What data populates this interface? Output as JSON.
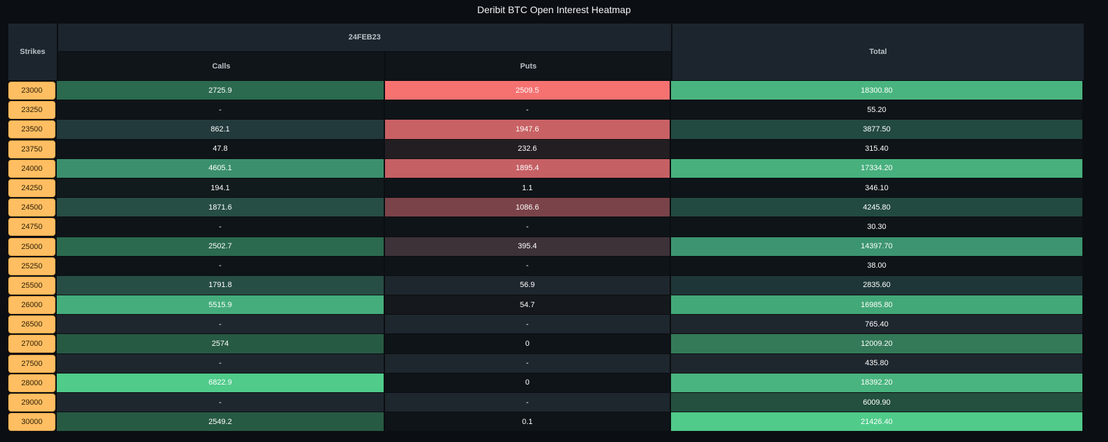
{
  "title": "Deribit BTC Open Interest Heatmap",
  "header": {
    "strikes": "Strikes",
    "expiry": "24FEB23",
    "calls": "Calls",
    "puts": "Puts",
    "total": "Total"
  },
  "colors": {
    "background": "#0b0e12",
    "strike_badge": "#ffbe62",
    "header": "#1c252d"
  },
  "rows": [
    {
      "strike": "23000",
      "calls": "2725.9",
      "puts": "2509.5",
      "total": "18300.80",
      "calls_bg": "#2b6a4f",
      "puts_bg": "#f57271",
      "total_bg": "#49b47f"
    },
    {
      "strike": "23250",
      "calls": "-",
      "puts": "-",
      "total": "55.20",
      "calls_bg": "#0f1418",
      "puts_bg": "#0f1418",
      "total_bg": "#0f1418"
    },
    {
      "strike": "23500",
      "calls": "862.1",
      "puts": "1947.6",
      "total": "3877.50",
      "calls_bg": "#223a3b",
      "puts_bg": "#c86164",
      "total_bg": "#234a40"
    },
    {
      "strike": "23750",
      "calls": "47.8",
      "puts": "232.6",
      "total": "315.40",
      "calls_bg": "#0f1418",
      "puts_bg": "#231e22",
      "total_bg": "#0f1418"
    },
    {
      "strike": "24000",
      "calls": "4605.1",
      "puts": "1895.4",
      "total": "17334.20",
      "calls_bg": "#3b8f6c",
      "puts_bg": "#c56065",
      "total_bg": "#47b07d"
    },
    {
      "strike": "24250",
      "calls": "194.1",
      "puts": "1.1",
      "total": "346.10",
      "calls_bg": "#111a1c",
      "puts_bg": "#0f1418",
      "total_bg": "#0f1418"
    },
    {
      "strike": "24500",
      "calls": "1871.6",
      "puts": "1086.6",
      "total": "4245.80",
      "calls_bg": "#274e45",
      "puts_bg": "#7a4349",
      "total_bg": "#234a40"
    },
    {
      "strike": "24750",
      "calls": "-",
      "puts": "-",
      "total": "30.30",
      "calls_bg": "#0f1418",
      "puts_bg": "#0f1418",
      "total_bg": "#0f1418"
    },
    {
      "strike": "25000",
      "calls": "2502.7",
      "puts": "395.4",
      "total": "14397.70",
      "calls_bg": "#2b6a4f",
      "puts_bg": "#3d3238",
      "total_bg": "#3c9570"
    },
    {
      "strike": "25250",
      "calls": "-",
      "puts": "-",
      "total": "38.00",
      "calls_bg": "#0f1418",
      "puts_bg": "#0f1418",
      "total_bg": "#0f1418"
    },
    {
      "strike": "25500",
      "calls": "1791.8",
      "puts": "56.9",
      "total": "2835.60",
      "calls_bg": "#274e45",
      "puts_bg": "#1f272e",
      "total_bg": "#1f3638"
    },
    {
      "strike": "26000",
      "calls": "5515.9",
      "puts": "54.7",
      "total": "16985.80",
      "calls_bg": "#45ad7c",
      "puts_bg": "#15181c",
      "total_bg": "#43a878"
    },
    {
      "strike": "26500",
      "calls": "-",
      "puts": "-",
      "total": "765.40",
      "calls_bg": "#1e272e",
      "puts_bg": "#1e272e",
      "total_bg": "#1e272e"
    },
    {
      "strike": "27000",
      "calls": "2574",
      "puts": "0",
      "total": "12009.20",
      "calls_bg": "#275a43",
      "puts_bg": "#0f1418",
      "total_bg": "#347a58"
    },
    {
      "strike": "27500",
      "calls": "-",
      "puts": "-",
      "total": "435.80",
      "calls_bg": "#1e272e",
      "puts_bg": "#1e272e",
      "total_bg": "#1e272e"
    },
    {
      "strike": "28000",
      "calls": "6822.9",
      "puts": "0",
      "total": "18392.20",
      "calls_bg": "#50cb8a",
      "puts_bg": "#0f1418",
      "total_bg": "#49b47f"
    },
    {
      "strike": "29000",
      "calls": "-",
      "puts": "-",
      "total": "6009.90",
      "calls_bg": "#1e272e",
      "puts_bg": "#1e272e",
      "total_bg": "#24503f"
    },
    {
      "strike": "30000",
      "calls": "2549.2",
      "puts": "0.1",
      "total": "21426.40",
      "calls_bg": "#275a43",
      "puts_bg": "#0f1418",
      "total_bg": "#50cb8a"
    }
  ]
}
